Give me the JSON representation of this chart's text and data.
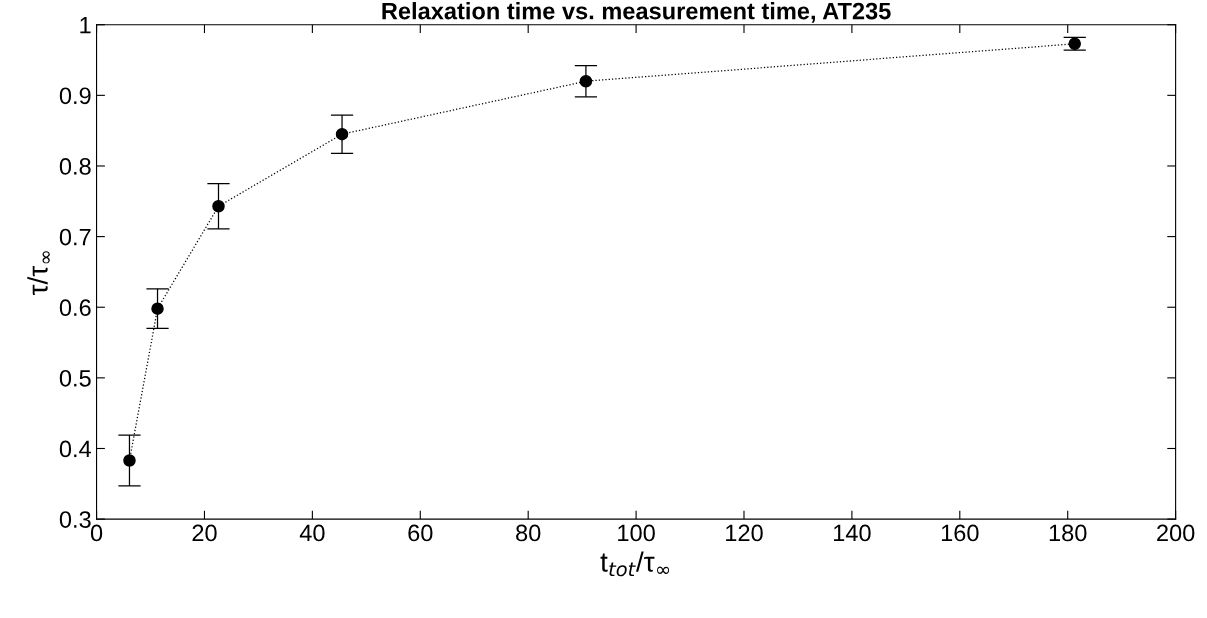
{
  "chart_data": {
    "type": "line",
    "title": "Relaxation time vs. measurement time, AT235",
    "xlabel": "t$_{tot}$/τ$_{∞}$",
    "ylabel": "τ/τ$_{∞}$",
    "x": [
      6.1,
      11.3,
      22.6,
      45.5,
      90.7,
      181.3
    ],
    "series": [
      {
        "color": "#000000",
        "values": [
          0.383,
          0.598,
          0.743,
          0.845,
          0.92,
          0.973
        ],
        "errors": [
          0.036,
          0.028,
          0.032,
          0.027,
          0.022,
          0.009
        ]
      }
    ],
    "marker": "circle",
    "line_style": "dotted",
    "grid": false,
    "xlim": [
      0,
      200
    ],
    "xticks": [
      0,
      20,
      40,
      60,
      80,
      100,
      120,
      140,
      160,
      180,
      200
    ],
    "ylim": [
      0.3,
      1
    ],
    "yticks": [
      0.3,
      0.4,
      0.5,
      0.6,
      0.7,
      0.8,
      0.9,
      1
    ]
  }
}
